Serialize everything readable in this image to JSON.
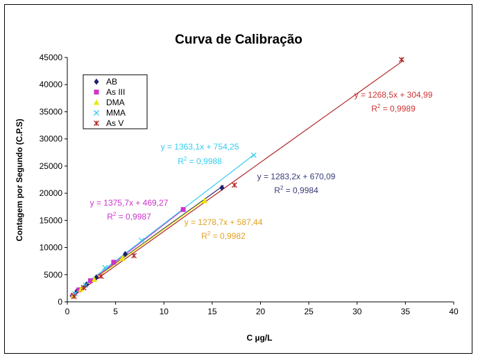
{
  "chart_data": {
    "type": "scatter",
    "title": "Curva de Calibração",
    "xlabel": "C µg/L",
    "ylabel": "Contagem por Segundo (C.P.S)",
    "xlim": [
      0,
      40
    ],
    "ylim": [
      0,
      45000
    ],
    "x_ticks": [
      "0",
      "5",
      "10",
      "15",
      "20",
      "25",
      "30",
      "35",
      "40"
    ],
    "y_ticks": [
      "0",
      "5000",
      "10000",
      "15000",
      "20000",
      "25000",
      "30000",
      "35000",
      "40000",
      "45000"
    ],
    "grid": false,
    "legend_position": "top-left",
    "series": [
      {
        "name": "AB",
        "color": "#1f1f6e",
        "marker": "diamond",
        "points": [
          [
            0.5,
            1100
          ],
          [
            1.0,
            2000
          ],
          [
            2.0,
            3200
          ],
          [
            3.0,
            4500
          ],
          [
            6.0,
            8800
          ],
          [
            16.0,
            21000
          ]
        ],
        "trendline": {
          "slope": 1283.2,
          "intercept": 670.09,
          "x_range": [
            0.5,
            16.2
          ]
        },
        "equation": "y = 1283,2x + 670,09",
        "r2": "= 0,9984",
        "eq_color": "#3a3a7a"
      },
      {
        "name": "As III",
        "color": "#cc33cc",
        "marker": "square",
        "points": [
          [
            0.6,
            1200
          ],
          [
            1.2,
            2200
          ],
          [
            2.4,
            3900
          ],
          [
            4.8,
            7300
          ],
          [
            12.0,
            17000
          ]
        ],
        "trendline": {
          "slope": 1375.7,
          "intercept": 469.27,
          "x_range": [
            0.5,
            12.2
          ]
        },
        "equation": "y = 1375,7x + 469,27",
        "r2": "= 0,9987",
        "eq_color": "#cc33cc"
      },
      {
        "name": "DMA",
        "color": "#e8e800",
        "marker": "triangle",
        "points": [
          [
            0.6,
            1100
          ],
          [
            1.4,
            2300
          ],
          [
            2.8,
            4100
          ],
          [
            5.7,
            8000
          ],
          [
            14.2,
            18600
          ]
        ],
        "trendline": {
          "slope": 1278.7,
          "intercept": 587.44,
          "x_range": [
            0.5,
            14.4
          ]
        },
        "equation": "y = 1278,7x + 587,44",
        "r2": "= 0,9982",
        "eq_color": "#e0a020"
      },
      {
        "name": "MMA",
        "color": "#33ccee",
        "marker": "x",
        "points": [
          [
            0.8,
            1500
          ],
          [
            1.9,
            3100
          ],
          [
            3.9,
            6300
          ],
          [
            7.7,
            11300
          ],
          [
            19.3,
            27000
          ]
        ],
        "trendline": {
          "slope": 1363.1,
          "intercept": 754.25,
          "x_range": [
            0.5,
            19.4
          ]
        },
        "equation": "y = 1363,1x + 754,25",
        "r2": "= 0,9988",
        "eq_color": "#33ccee"
      },
      {
        "name": "As V",
        "color": "#b22222",
        "marker": "star",
        "points": [
          [
            0.7,
            1000
          ],
          [
            1.7,
            2600
          ],
          [
            3.5,
            4700
          ],
          [
            6.9,
            8500
          ],
          [
            17.3,
            21500
          ],
          [
            34.6,
            44600
          ]
        ],
        "trendline": {
          "slope": 1268.5,
          "intercept": 304.99,
          "x_range": [
            0.5,
            34.8
          ]
        },
        "equation": "y = 1268,5x + 304,99",
        "r2": "= 0,9989",
        "eq_color": "#cc3333"
      }
    ]
  }
}
